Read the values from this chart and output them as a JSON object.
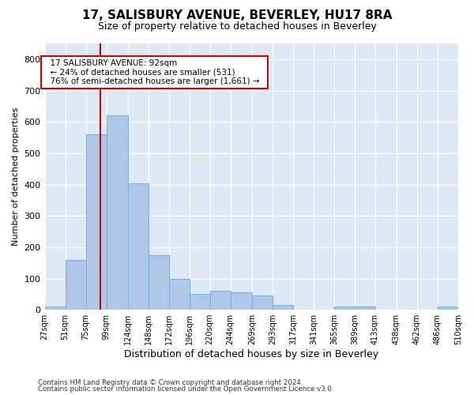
{
  "title": "17, SALISBURY AVENUE, BEVERLEY, HU17 8RA",
  "subtitle": "Size of property relative to detached houses in Beverley",
  "xlabel": "Distribution of detached houses by size in Beverley",
  "ylabel": "Number of detached properties",
  "footnote1": "Contains HM Land Registry data © Crown copyright and database right 2024.",
  "footnote2": "Contains public sector information licensed under the Open Government Licence v3.0.",
  "property_size": 92,
  "property_label": "17 SALISBURY AVENUE: 92sqm",
  "annotation_line1": "← 24% of detached houses are smaller (531)",
  "annotation_line2": "76% of semi-detached houses are larger (1,661) →",
  "bin_edges": [
    27,
    51,
    75,
    99,
    124,
    148,
    172,
    196,
    220,
    244,
    269,
    293,
    317,
    341,
    365,
    389,
    413,
    438,
    462,
    486,
    510
  ],
  "bar_heights": [
    10,
    160,
    560,
    620,
    405,
    175,
    100,
    50,
    60,
    55,
    45,
    15,
    0,
    0,
    10,
    10,
    0,
    0,
    0,
    10
  ],
  "bar_color": "#aec6e8",
  "bar_edge_color": "#7aadd4",
  "bg_color": "#dce9f5",
  "vline_color": "#cc0000",
  "vline_x": 92,
  "ylim": [
    0,
    850
  ],
  "yticks": [
    0,
    100,
    200,
    300,
    400,
    500,
    600,
    700,
    800
  ],
  "annotation_box_color": "#cc0000",
  "grid_color": "#ffffff",
  "title_fontsize": 11,
  "subtitle_fontsize": 9,
  "ylabel_fontsize": 8,
  "xlabel_fontsize": 9,
  "tick_fontsize": 8,
  "xtick_fontsize": 7
}
